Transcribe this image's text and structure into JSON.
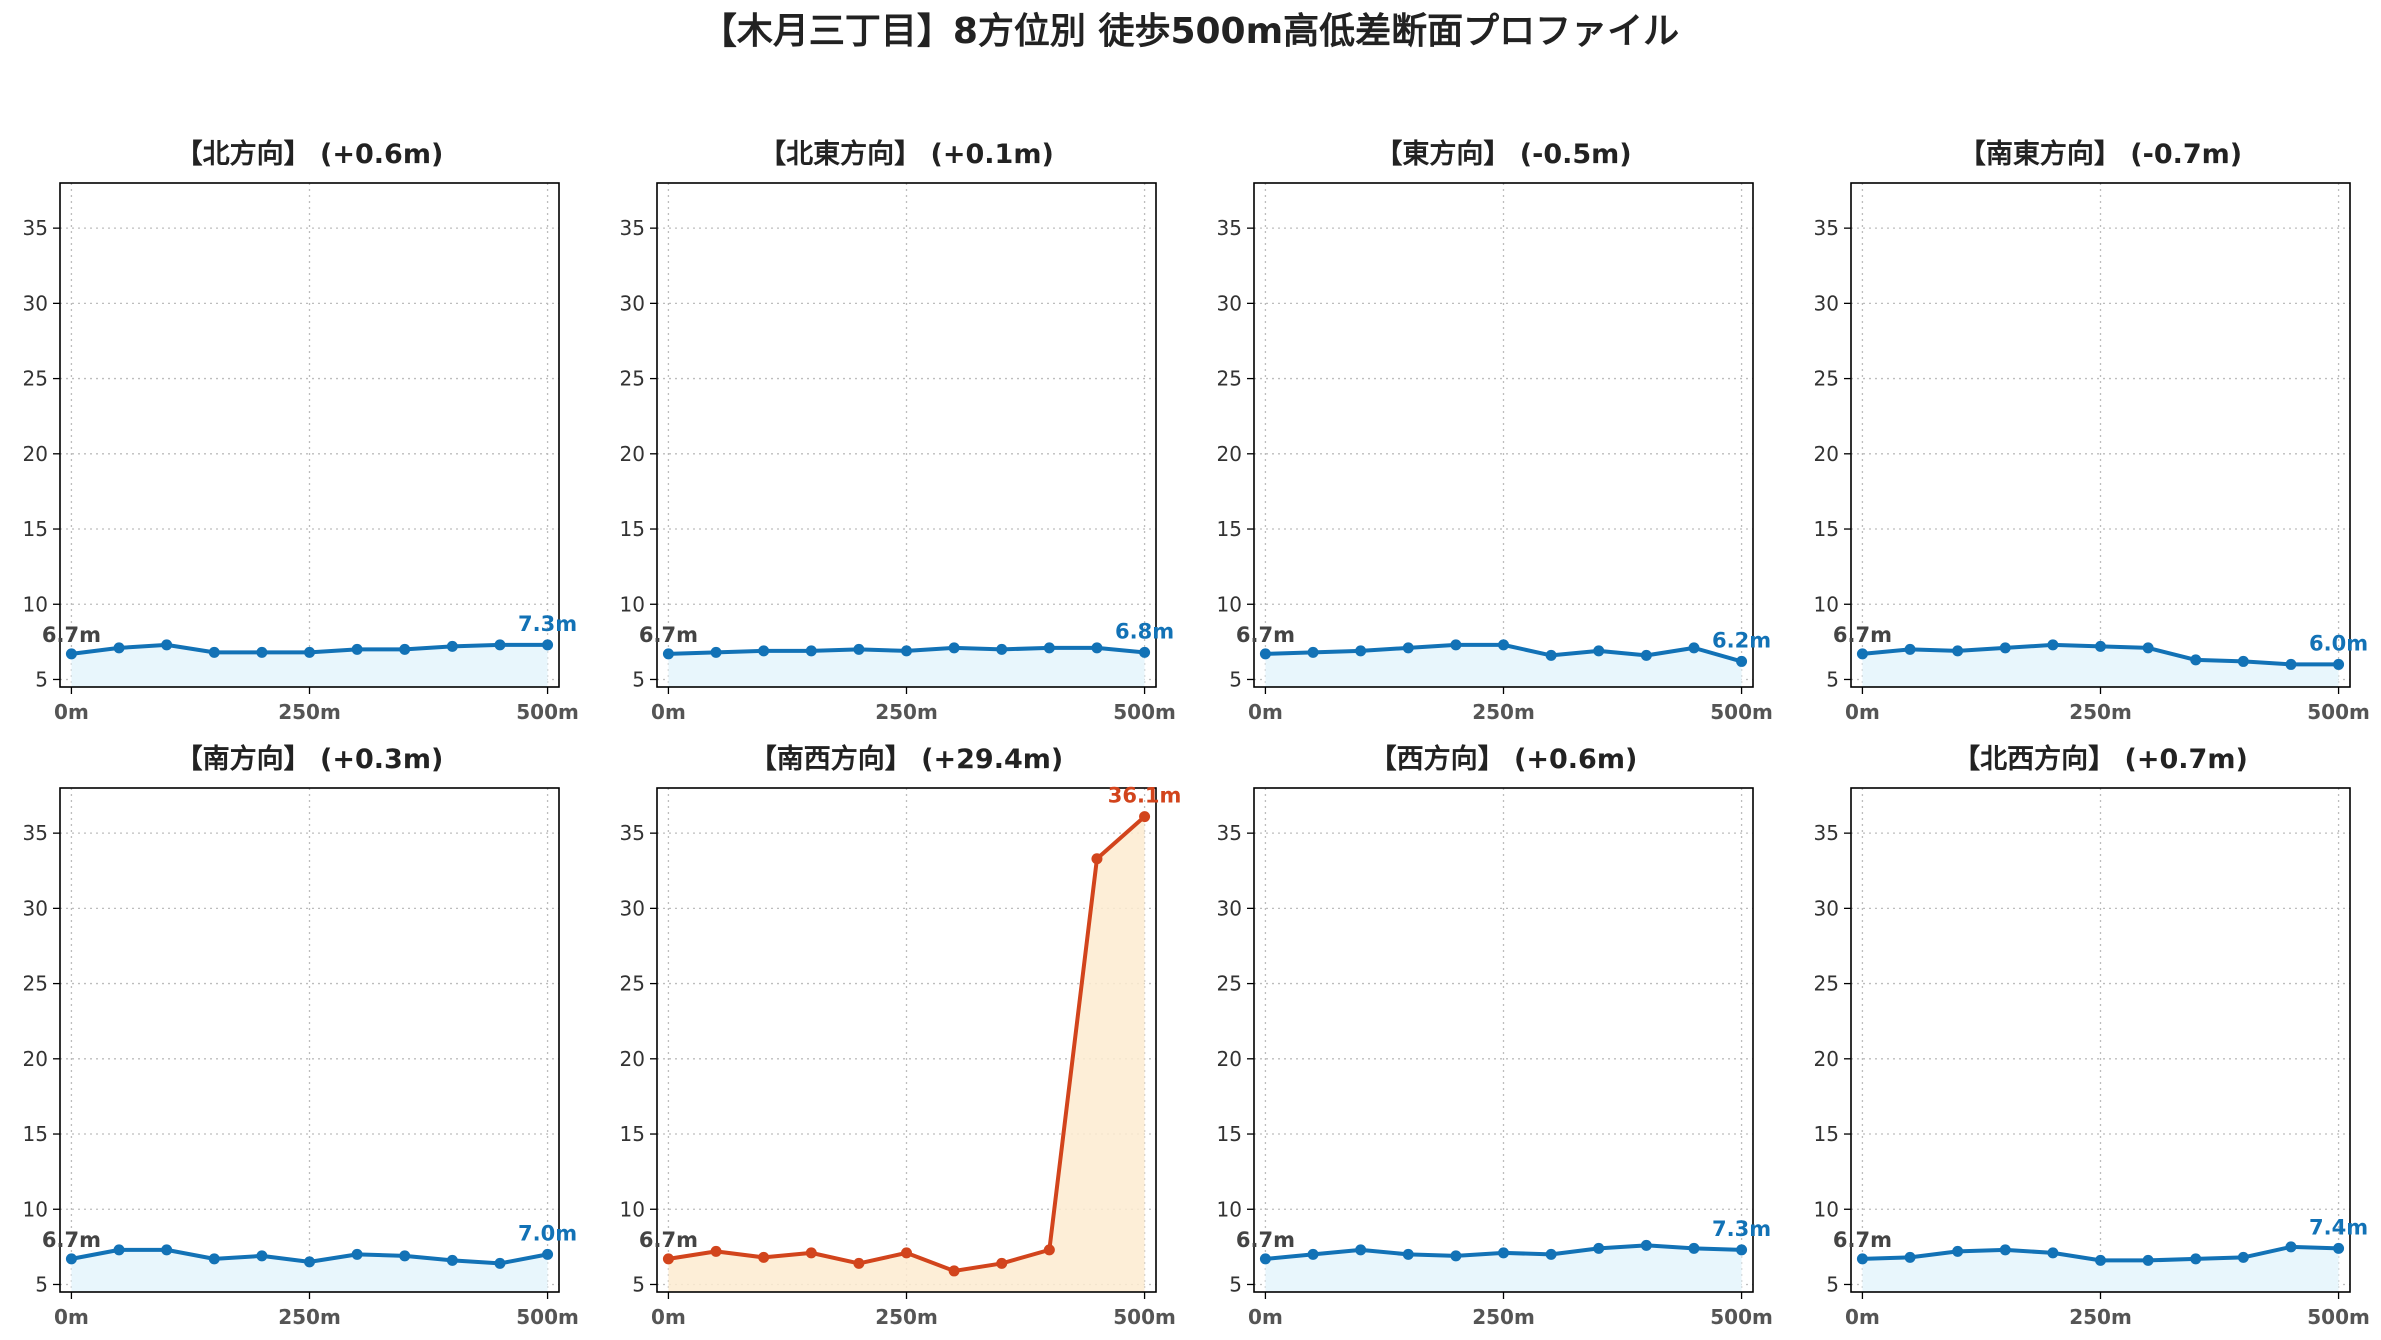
{
  "title": "【木月三丁目】8方位別 徒歩500m高低差断面プロファイル",
  "colors": {
    "normal_line": "#1272b6",
    "normal_fill": "#e8f6fc",
    "highlight_line": "#d2441c",
    "highlight_fill": "#fdebd0",
    "start_label": "#444444"
  },
  "chart_data": [
    {
      "type": "line",
      "title": "【北方向】 (+0.6m)",
      "x": [
        0,
        50,
        100,
        150,
        200,
        250,
        300,
        350,
        400,
        450,
        500
      ],
      "values": [
        6.7,
        7.1,
        7.3,
        6.8,
        6.8,
        6.8,
        7.0,
        7.0,
        7.2,
        7.3,
        7.3
      ],
      "xticks": [
        "0m",
        "250m",
        "500m"
      ],
      "yticks": [
        "5",
        "10",
        "15",
        "20",
        "25",
        "30",
        "35"
      ],
      "ylim": [
        4.5,
        38
      ],
      "xlim": [
        -12,
        512
      ],
      "start_label": "6.7m",
      "end_label": "7.3m",
      "highlight": false,
      "grid": true
    },
    {
      "type": "line",
      "title": "【北東方向】 (+0.1m)",
      "x": [
        0,
        50,
        100,
        150,
        200,
        250,
        300,
        350,
        400,
        450,
        500
      ],
      "values": [
        6.7,
        6.8,
        6.9,
        6.9,
        7.0,
        6.9,
        7.1,
        7.0,
        7.1,
        7.1,
        6.8
      ],
      "xticks": [
        "0m",
        "250m",
        "500m"
      ],
      "yticks": [
        "5",
        "10",
        "15",
        "20",
        "25",
        "30",
        "35"
      ],
      "ylim": [
        4.5,
        38
      ],
      "xlim": [
        -12,
        512
      ],
      "start_label": "6.7m",
      "end_label": "6.8m",
      "highlight": false,
      "grid": true
    },
    {
      "type": "line",
      "title": "【東方向】 (-0.5m)",
      "x": [
        0,
        50,
        100,
        150,
        200,
        250,
        300,
        350,
        400,
        450,
        500
      ],
      "values": [
        6.7,
        6.8,
        6.9,
        7.1,
        7.3,
        7.3,
        6.6,
        6.9,
        6.6,
        7.1,
        6.2
      ],
      "xticks": [
        "0m",
        "250m",
        "500m"
      ],
      "yticks": [
        "5",
        "10",
        "15",
        "20",
        "25",
        "30",
        "35"
      ],
      "ylim": [
        4.5,
        38
      ],
      "xlim": [
        -12,
        512
      ],
      "start_label": "6.7m",
      "end_label": "6.2m",
      "highlight": false,
      "grid": true
    },
    {
      "type": "line",
      "title": "【南東方向】 (-0.7m)",
      "x": [
        0,
        50,
        100,
        150,
        200,
        250,
        300,
        350,
        400,
        450,
        500
      ],
      "values": [
        6.7,
        7.0,
        6.9,
        7.1,
        7.3,
        7.2,
        7.1,
        6.3,
        6.2,
        6.0,
        6.0
      ],
      "xticks": [
        "0m",
        "250m",
        "500m"
      ],
      "yticks": [
        "5",
        "10",
        "15",
        "20",
        "25",
        "30",
        "35"
      ],
      "ylim": [
        4.5,
        38
      ],
      "xlim": [
        -12,
        512
      ],
      "start_label": "6.7m",
      "end_label": "6.0m",
      "highlight": false,
      "grid": true
    },
    {
      "type": "line",
      "title": "【南方向】 (+0.3m)",
      "x": [
        0,
        50,
        100,
        150,
        200,
        250,
        300,
        350,
        400,
        450,
        500
      ],
      "values": [
        6.7,
        7.3,
        7.3,
        6.7,
        6.9,
        6.5,
        7.0,
        6.9,
        6.6,
        6.4,
        7.0
      ],
      "xticks": [
        "0m",
        "250m",
        "500m"
      ],
      "yticks": [
        "5",
        "10",
        "15",
        "20",
        "25",
        "30",
        "35"
      ],
      "ylim": [
        4.5,
        38
      ],
      "xlim": [
        -12,
        512
      ],
      "start_label": "6.7m",
      "end_label": "7.0m",
      "highlight": false,
      "grid": true
    },
    {
      "type": "line",
      "title": "【南西方向】 (+29.4m)",
      "x": [
        0,
        50,
        100,
        150,
        200,
        250,
        300,
        350,
        400,
        450,
        500
      ],
      "values": [
        6.7,
        7.2,
        6.8,
        7.1,
        6.4,
        7.1,
        5.9,
        6.4,
        7.3,
        33.3,
        36.1
      ],
      "xticks": [
        "0m",
        "250m",
        "500m"
      ],
      "yticks": [
        "5",
        "10",
        "15",
        "20",
        "25",
        "30",
        "35"
      ],
      "ylim": [
        4.5,
        38
      ],
      "xlim": [
        -12,
        512
      ],
      "start_label": "6.7m",
      "end_label": "36.1m",
      "highlight": true,
      "grid": true
    },
    {
      "type": "line",
      "title": "【西方向】 (+0.6m)",
      "x": [
        0,
        50,
        100,
        150,
        200,
        250,
        300,
        350,
        400,
        450,
        500
      ],
      "values": [
        6.7,
        7.0,
        7.3,
        7.0,
        6.9,
        7.1,
        7.0,
        7.4,
        7.6,
        7.4,
        7.3
      ],
      "xticks": [
        "0m",
        "250m",
        "500m"
      ],
      "yticks": [
        "5",
        "10",
        "15",
        "20",
        "25",
        "30",
        "35"
      ],
      "ylim": [
        4.5,
        38
      ],
      "xlim": [
        -12,
        512
      ],
      "start_label": "6.7m",
      "end_label": "7.3m",
      "highlight": false,
      "grid": true
    },
    {
      "type": "line",
      "title": "【北西方向】 (+0.7m)",
      "x": [
        0,
        50,
        100,
        150,
        200,
        250,
        300,
        350,
        400,
        450,
        500
      ],
      "values": [
        6.7,
        6.8,
        7.2,
        7.3,
        7.1,
        6.6,
        6.6,
        6.7,
        6.8,
        7.5,
        7.4
      ],
      "xticks": [
        "0m",
        "250m",
        "500m"
      ],
      "yticks": [
        "5",
        "10",
        "15",
        "20",
        "25",
        "30",
        "35"
      ],
      "ylim": [
        4.5,
        38
      ],
      "xlim": [
        -12,
        512
      ],
      "start_label": "6.7m",
      "end_label": "7.4m",
      "highlight": false,
      "grid": true
    }
  ]
}
